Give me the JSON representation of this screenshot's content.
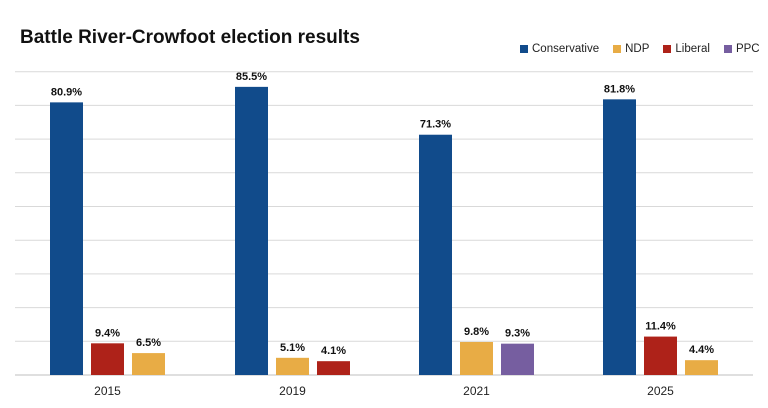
{
  "chart_data": {
    "type": "bar",
    "title": "Battle River-Crowfoot election results",
    "xlabel": "",
    "ylabel": "",
    "ylim": [
      0,
      90
    ],
    "grid": true,
    "legend_position": "top-right",
    "legend": [
      {
        "name": "Conservative",
        "color": "#114b8b"
      },
      {
        "name": "NDP",
        "color": "#e8ac45"
      },
      {
        "name": "Liberal",
        "color": "#ae2219"
      },
      {
        "name": "PPC",
        "color": "#765ea0"
      }
    ],
    "groups": [
      {
        "year": "2015",
        "bars": [
          {
            "party": "Conservative",
            "value": 80.9,
            "label": "80.9%"
          },
          {
            "party": "Liberal",
            "value": 9.4,
            "label": "9.4%"
          },
          {
            "party": "NDP",
            "value": 6.5,
            "label": "6.5%"
          }
        ]
      },
      {
        "year": "2019",
        "bars": [
          {
            "party": "Conservative",
            "value": 85.5,
            "label": "85.5%"
          },
          {
            "party": "NDP",
            "value": 5.1,
            "label": "5.1%"
          },
          {
            "party": "Liberal",
            "value": 4.1,
            "label": "4.1%"
          }
        ]
      },
      {
        "year": "2021",
        "bars": [
          {
            "party": "Conservative",
            "value": 71.3,
            "label": "71.3%"
          },
          {
            "party": "NDP",
            "value": 9.8,
            "label": "9.8%"
          },
          {
            "party": "PPC",
            "value": 9.3,
            "label": "9.3%"
          }
        ]
      },
      {
        "year": "2025",
        "bars": [
          {
            "party": "Conservative",
            "value": 81.8,
            "label": "81.8%"
          },
          {
            "party": "Liberal",
            "value": 11.4,
            "label": "11.4%"
          },
          {
            "party": "NDP",
            "value": 4.4,
            "label": "4.4%"
          }
        ]
      }
    ]
  }
}
